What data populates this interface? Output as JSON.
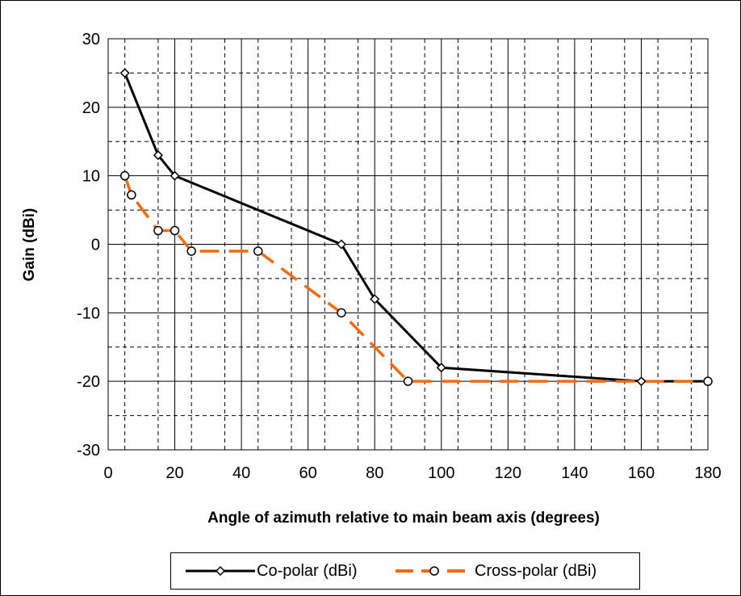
{
  "chart_data": {
    "type": "line",
    "title": "",
    "xlabel": "Angle of azimuth relative to main beam axis (degrees)",
    "ylabel": "Gain (dBi)",
    "xlim": [
      0,
      180
    ],
    "ylim": [
      -30,
      30
    ],
    "x_ticks": [
      "0",
      "20",
      "40",
      "60",
      "80",
      "100",
      "120",
      "140",
      "160",
      "180"
    ],
    "y_ticks": [
      "30",
      "20",
      "10",
      "0",
      "-10",
      "-20",
      "-30"
    ],
    "grid": true,
    "legend_position": "bottom",
    "series": [
      {
        "name": "Co-polar (dBi)",
        "color": "#000000",
        "marker": "diamond",
        "line_style": "solid",
        "x": [
          5,
          15,
          20,
          70,
          80,
          100,
          160,
          180
        ],
        "y": [
          25,
          13,
          10,
          0,
          -8,
          -18,
          -20,
          -20
        ]
      },
      {
        "name": "Cross-polar (dBi)",
        "color": "#F26B0F",
        "marker": "circle",
        "line_style": "dashed",
        "x": [
          5,
          7,
          15,
          20,
          25,
          45,
          70,
          90,
          180
        ],
        "y": [
          10,
          7.2,
          2,
          2,
          -1,
          -1,
          -10,
          -20,
          -20
        ]
      }
    ]
  },
  "legend": {
    "co_label": "Co-polar (dBi)",
    "cross_label": "Cross-polar (dBi)"
  }
}
